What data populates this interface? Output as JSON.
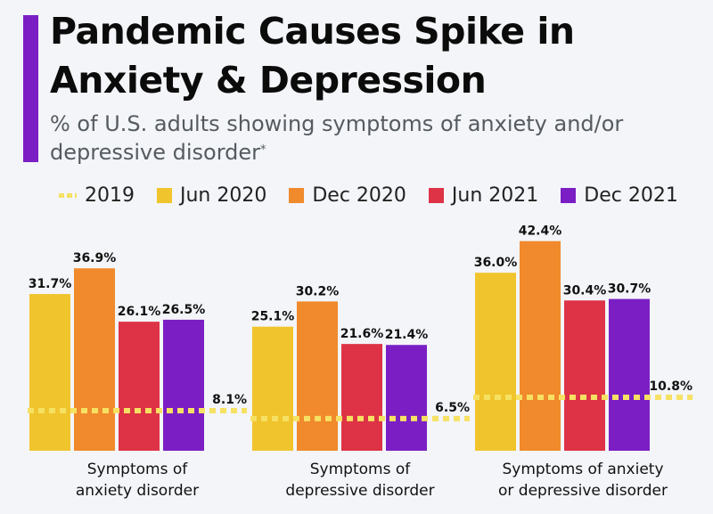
{
  "header": {
    "title": "Pandemic Causes Spike in Anxiety & Depression",
    "subtitle": "% of U.S. adults showing symptoms of anxiety and/or depressive disorder",
    "subtitle_footnote_mark": "*",
    "accent_color": "#7b1fc4"
  },
  "legend": {
    "items": [
      {
        "label": "2019",
        "color": "#f6e163",
        "style": "dashed"
      },
      {
        "label": "Jun 2020",
        "color": "#f0c42c",
        "style": "solid"
      },
      {
        "label": "Dec 2020",
        "color": "#f08a2c",
        "style": "solid"
      },
      {
        "label": "Jun 2021",
        "color": "#de3346",
        "style": "solid"
      },
      {
        "label": "Dec 2021",
        "color": "#7b1fc4",
        "style": "solid"
      }
    ]
  },
  "chart_data": {
    "type": "bar",
    "categories": [
      "Symptoms of anxiety disorder",
      "Symptoms of depressive disorder",
      "Symptoms of anxiety or depressive disorder"
    ],
    "category_lines": [
      [
        "Symptoms of",
        "anxiety disorder"
      ],
      [
        "Symptoms of",
        "depressive disorder"
      ],
      [
        "Symptoms of anxiety",
        "or depressive disorder"
      ]
    ],
    "series": [
      {
        "name": "Jun 2020",
        "color": "#f0c42c",
        "values": [
          31.7,
          25.1,
          36.0
        ],
        "labels": [
          "31.7%",
          "25.1%",
          "36.0%"
        ]
      },
      {
        "name": "Dec 2020",
        "color": "#f08a2c",
        "values": [
          36.9,
          30.2,
          42.4
        ],
        "labels": [
          "36.9%",
          "30.2%",
          "42.4%"
        ]
      },
      {
        "name": "Jun 2021",
        "color": "#de3346",
        "values": [
          26.1,
          21.6,
          30.4
        ],
        "labels": [
          "26.1%",
          "21.6%",
          "30.4%"
        ]
      },
      {
        "name": "Dec 2021",
        "color": "#7b1fc4",
        "values": [
          26.5,
          21.4,
          30.7
        ],
        "labels": [
          "26.5%",
          "21.4%",
          "30.7%"
        ]
      }
    ],
    "reference": {
      "name": "2019",
      "color": "#f6e163",
      "style": "dashed",
      "values": [
        8.1,
        6.5,
        10.8
      ],
      "labels": [
        "8.1%",
        "6.5%",
        "10.8%"
      ]
    },
    "ylim": [
      0,
      43
    ],
    "grid": false,
    "legend_position": "top"
  }
}
